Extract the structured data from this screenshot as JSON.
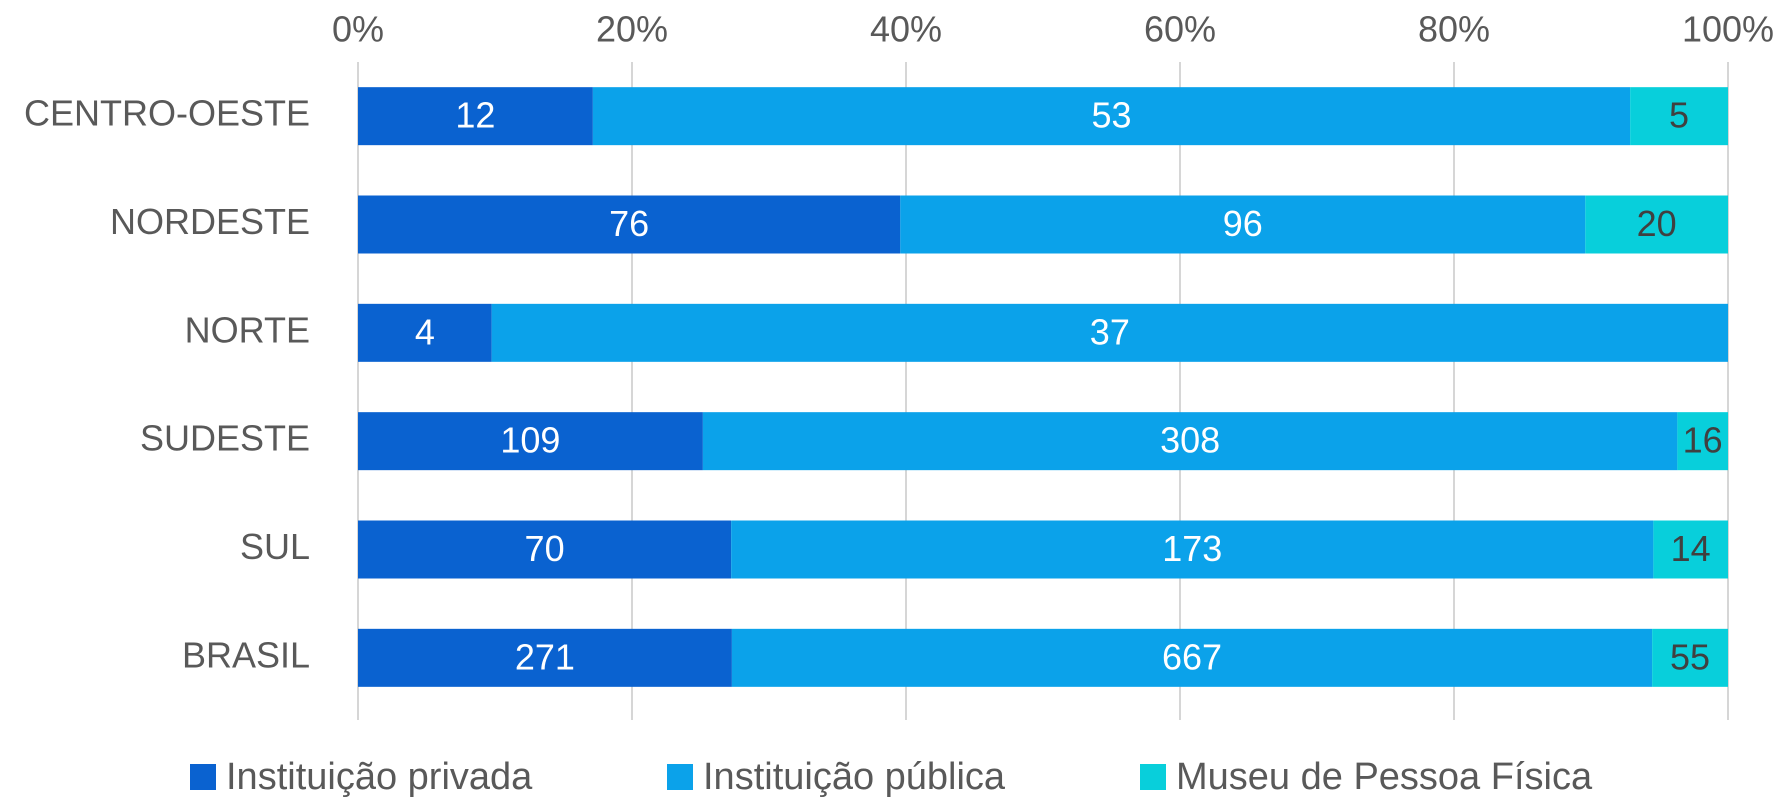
{
  "chart_data": {
    "type": "bar",
    "orientation": "horizontal",
    "stacked": "percent",
    "categories": [
      "CENTRO-OESTE",
      "NORDESTE",
      "NORTE",
      "SUDESTE",
      "SUL",
      "BRASIL"
    ],
    "series": [
      {
        "name": "Instituição privada",
        "color": "#0a62d0",
        "label_color": "#ffffff",
        "values": [
          12,
          76,
          4,
          109,
          70,
          271
        ]
      },
      {
        "name": "Instituição pública",
        "color": "#0ba2ea",
        "label_color": "#ffffff",
        "values": [
          53,
          96,
          37,
          308,
          173,
          667
        ]
      },
      {
        "name": "Museu de Pessoa Física",
        "color": "#08cfdb",
        "label_color": "#404040",
        "values": [
          5,
          20,
          null,
          16,
          14,
          55
        ]
      }
    ],
    "xlim": [
      0,
      100
    ],
    "xticks": [
      {
        "value": 0,
        "label": "0%"
      },
      {
        "value": 20,
        "label": "20%"
      },
      {
        "value": 40,
        "label": "40%"
      },
      {
        "value": 60,
        "label": "60%"
      },
      {
        "value": 80,
        "label": "80%"
      },
      {
        "value": 100,
        "label": "100%"
      }
    ],
    "grid": true,
    "legend": "bottom"
  }
}
